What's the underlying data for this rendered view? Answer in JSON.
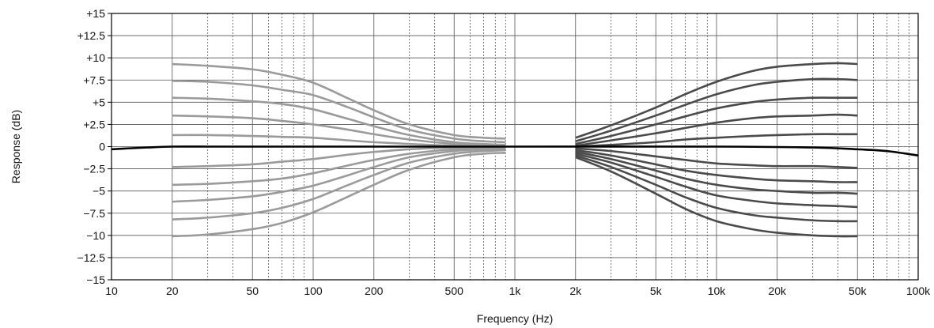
{
  "chart_data": {
    "type": "line",
    "title": "",
    "xlabel": "Frequency (Hz)",
    "ylabel": "Response (dB)",
    "x_scale": "log",
    "xlim": [
      10,
      100000
    ],
    "ylim": [
      -15,
      15
    ],
    "grid": true,
    "legend": "none",
    "x_ticks": [
      {
        "value": 10,
        "label": "10"
      },
      {
        "value": 20,
        "label": "20"
      },
      {
        "value": 50,
        "label": "50"
      },
      {
        "value": 100,
        "label": "100"
      },
      {
        "value": 200,
        "label": "200"
      },
      {
        "value": 500,
        "label": "500"
      },
      {
        "value": 1000,
        "label": "1k"
      },
      {
        "value": 2000,
        "label": "2k"
      },
      {
        "value": 5000,
        "label": "5k"
      },
      {
        "value": 10000,
        "label": "10k"
      },
      {
        "value": 20000,
        "label": "20k"
      },
      {
        "value": 50000,
        "label": "50k"
      },
      {
        "value": 100000,
        "label": "100k"
      }
    ],
    "x_minor_dashed": [
      30,
      40,
      60,
      70,
      80,
      90,
      300,
      400,
      600,
      700,
      800,
      900,
      3000,
      4000,
      6000,
      7000,
      8000,
      9000,
      30000,
      40000,
      60000,
      70000,
      80000,
      90000
    ],
    "y_ticks": [
      {
        "value": 15,
        "label": "+15"
      },
      {
        "value": 12.5,
        "label": "+12.5"
      },
      {
        "value": 10,
        "label": "+10"
      },
      {
        "value": 7.5,
        "label": "+7.5"
      },
      {
        "value": 5,
        "label": "+5"
      },
      {
        "value": 2.5,
        "label": "+2.5"
      },
      {
        "value": 0,
        "label": "0"
      },
      {
        "value": -2.5,
        "label": "−2.5"
      },
      {
        "value": -5,
        "label": "−5"
      },
      {
        "value": -7.5,
        "label": "−7.5"
      },
      {
        "value": -10,
        "label": "−10"
      },
      {
        "value": -12.5,
        "label": "−12.5"
      },
      {
        "value": -15,
        "label": "−15"
      }
    ],
    "colors": {
      "bass": "#9a9a9a",
      "treble": "#4a4a4a",
      "flat": "#000000",
      "grid": "#555555",
      "frame": "#000000"
    },
    "series": [
      {
        "group": "bass",
        "x": [
          20,
          30,
          50,
          70,
          100,
          150,
          200,
          300,
          500,
          700,
          900
        ],
        "y": [
          9.3,
          9.1,
          8.7,
          8.1,
          7.2,
          5.4,
          4.1,
          2.5,
          1.3,
          1.0,
          0.9
        ]
      },
      {
        "group": "bass",
        "x": [
          20,
          30,
          50,
          70,
          100,
          150,
          200,
          300,
          500,
          700,
          900
        ],
        "y": [
          7.4,
          7.3,
          6.9,
          6.4,
          5.8,
          4.4,
          3.3,
          1.9,
          0.9,
          0.6,
          0.5
        ]
      },
      {
        "group": "bass",
        "x": [
          20,
          30,
          50,
          70,
          100,
          150,
          200,
          300,
          500,
          700,
          900
        ],
        "y": [
          5.5,
          5.4,
          5.1,
          4.8,
          4.2,
          3.1,
          2.3,
          1.3,
          0.5,
          0.3,
          0.2
        ]
      },
      {
        "group": "bass",
        "x": [
          20,
          30,
          50,
          70,
          100,
          150,
          200,
          300,
          500,
          700,
          900
        ],
        "y": [
          3.5,
          3.4,
          3.2,
          2.9,
          2.5,
          1.9,
          1.4,
          0.8,
          0.3,
          0.1,
          0.1
        ]
      },
      {
        "group": "bass",
        "x": [
          20,
          30,
          50,
          70,
          100,
          150,
          200,
          300,
          500,
          700,
          900
        ],
        "y": [
          1.3,
          1.3,
          1.2,
          1.1,
          1.0,
          0.7,
          0.5,
          0.3,
          0.1,
          0.05,
          0.0
        ]
      },
      {
        "group": "bass",
        "x": [
          20,
          30,
          50,
          70,
          100,
          150,
          200,
          300,
          500,
          700,
          900
        ],
        "y": [
          -2.3,
          -2.2,
          -2.0,
          -1.7,
          -1.4,
          -0.9,
          -0.6,
          -0.3,
          -0.1,
          0.0,
          0.0
        ]
      },
      {
        "group": "bass",
        "x": [
          20,
          30,
          50,
          70,
          100,
          150,
          200,
          300,
          500,
          700,
          900
        ],
        "y": [
          -4.3,
          -4.2,
          -3.9,
          -3.6,
          -3.0,
          -2.1,
          -1.5,
          -0.8,
          -0.3,
          -0.2,
          -0.1
        ]
      },
      {
        "group": "bass",
        "x": [
          20,
          30,
          50,
          70,
          100,
          150,
          200,
          300,
          500,
          700,
          900
        ],
        "y": [
          -6.2,
          -6.0,
          -5.6,
          -5.1,
          -4.4,
          -3.2,
          -2.3,
          -1.2,
          -0.5,
          -0.3,
          -0.2
        ]
      },
      {
        "group": "bass",
        "x": [
          20,
          30,
          50,
          70,
          100,
          150,
          200,
          300,
          500,
          700,
          900
        ],
        "y": [
          -8.2,
          -8.0,
          -7.5,
          -6.9,
          -5.9,
          -4.3,
          -3.2,
          -1.8,
          -0.8,
          -0.5,
          -0.4
        ]
      },
      {
        "group": "bass",
        "x": [
          20,
          30,
          50,
          70,
          100,
          150,
          200,
          300,
          500,
          700,
          900
        ],
        "y": [
          -10.1,
          -9.9,
          -9.3,
          -8.6,
          -7.4,
          -5.6,
          -4.3,
          -2.6,
          -1.2,
          -0.8,
          -0.7
        ]
      },
      {
        "group": "treble",
        "x": [
          2000,
          3000,
          5000,
          7000,
          10000,
          15000,
          20000,
          30000,
          40000,
          50000
        ],
        "y": [
          1.0,
          2.4,
          4.4,
          5.9,
          7.3,
          8.5,
          9.0,
          9.3,
          9.4,
          9.3
        ]
      },
      {
        "group": "treble",
        "x": [
          2000,
          3000,
          5000,
          7000,
          10000,
          15000,
          20000,
          30000,
          40000,
          50000
        ],
        "y": [
          0.6,
          1.8,
          3.5,
          4.7,
          5.9,
          6.9,
          7.3,
          7.6,
          7.6,
          7.5
        ]
      },
      {
        "group": "treble",
        "x": [
          2000,
          3000,
          5000,
          7000,
          10000,
          15000,
          20000,
          30000,
          40000,
          50000
        ],
        "y": [
          0.3,
          1.2,
          2.5,
          3.4,
          4.3,
          5.0,
          5.3,
          5.5,
          5.5,
          5.5
        ]
      },
      {
        "group": "treble",
        "x": [
          2000,
          3000,
          5000,
          7000,
          10000,
          15000,
          20000,
          30000,
          40000,
          50000
        ],
        "y": [
          0.1,
          0.7,
          1.5,
          2.1,
          2.7,
          3.2,
          3.4,
          3.5,
          3.6,
          3.5
        ]
      },
      {
        "group": "treble",
        "x": [
          2000,
          3000,
          5000,
          7000,
          10000,
          15000,
          20000,
          30000,
          40000,
          50000
        ],
        "y": [
          0.0,
          0.2,
          0.5,
          0.8,
          1.0,
          1.2,
          1.3,
          1.4,
          1.4,
          1.4
        ]
      },
      {
        "group": "treble",
        "x": [
          2000,
          3000,
          5000,
          7000,
          10000,
          15000,
          20000,
          30000,
          40000,
          50000
        ],
        "y": [
          -0.2,
          -0.5,
          -1.1,
          -1.5,
          -1.9,
          -2.1,
          -2.2,
          -2.2,
          -2.3,
          -2.4
        ]
      },
      {
        "group": "treble",
        "x": [
          2000,
          3000,
          5000,
          7000,
          10000,
          15000,
          20000,
          30000,
          40000,
          50000
        ],
        "y": [
          -0.4,
          -1.0,
          -2.0,
          -2.7,
          -3.2,
          -3.6,
          -3.8,
          -3.9,
          -4.0,
          -4.0
        ]
      },
      {
        "group": "treble",
        "x": [
          2000,
          3000,
          5000,
          7000,
          10000,
          15000,
          20000,
          30000,
          40000,
          50000
        ],
        "y": [
          -0.6,
          -1.4,
          -2.7,
          -3.6,
          -4.3,
          -4.8,
          -5.0,
          -5.2,
          -5.2,
          -5.3
        ]
      },
      {
        "group": "treble",
        "x": [
          2000,
          3000,
          5000,
          7000,
          10000,
          15000,
          20000,
          30000,
          40000,
          50000
        ],
        "y": [
          -0.8,
          -1.8,
          -3.4,
          -4.5,
          -5.5,
          -6.1,
          -6.4,
          -6.6,
          -6.7,
          -6.8
        ]
      },
      {
        "group": "treble",
        "x": [
          2000,
          3000,
          5000,
          7000,
          10000,
          15000,
          20000,
          30000,
          40000,
          50000
        ],
        "y": [
          -1.0,
          -2.3,
          -4.3,
          -5.7,
          -6.9,
          -7.7,
          -8.0,
          -8.3,
          -8.4,
          -8.4
        ]
      },
      {
        "group": "treble",
        "x": [
          2000,
          3000,
          5000,
          7000,
          10000,
          15000,
          20000,
          30000,
          40000,
          50000
        ],
        "y": [
          -1.2,
          -2.8,
          -5.3,
          -7.0,
          -8.4,
          -9.3,
          -9.7,
          -10.0,
          -10.1,
          -10.1
        ]
      },
      {
        "group": "flat",
        "x": [
          10,
          12,
          15,
          20,
          30,
          50,
          100,
          1000,
          10000,
          30000,
          50000,
          70000,
          100000
        ],
        "y": [
          -0.3,
          -0.2,
          -0.1,
          0.0,
          0.0,
          0.0,
          0.0,
          0.0,
          0.0,
          -0.1,
          -0.3,
          -0.5,
          -1.0
        ]
      }
    ]
  }
}
